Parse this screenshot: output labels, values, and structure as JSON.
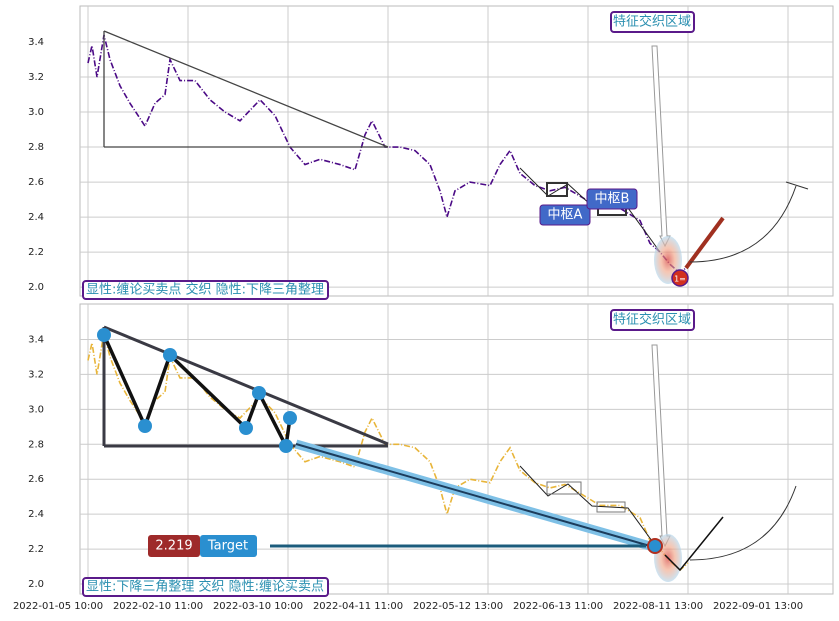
{
  "chart_data": [
    {
      "type": "line",
      "x": [
        0,
        4,
        9,
        16,
        22,
        32,
        42,
        57,
        67,
        77,
        82,
        92,
        107,
        122,
        137,
        152,
        172,
        187,
        202,
        217,
        232,
        252,
        267,
        277,
        284,
        297,
        312,
        327,
        342,
        352,
        359,
        367,
        382,
        402,
        412,
        422,
        432,
        447,
        462,
        477,
        492,
        512,
        532,
        552,
        562,
        572,
        582,
        592,
        600
      ],
      "series": [
        {
          "color": "#4b0a86",
          "values": [
            3.28,
            3.38,
            3.2,
            3.44,
            3.3,
            3.15,
            3.05,
            2.92,
            3.05,
            3.1,
            3.3,
            3.18,
            3.18,
            3.07,
            3.0,
            2.95,
            3.07,
            2.98,
            2.8,
            2.7,
            2.73,
            2.7,
            2.67,
            2.87,
            2.95,
            2.8,
            2.8,
            2.78,
            2.7,
            2.55,
            2.4,
            2.55,
            2.6,
            2.58,
            2.7,
            2.78,
            2.65,
            2.58,
            2.55,
            2.57,
            2.52,
            2.45,
            2.45,
            2.38,
            2.25,
            2.2,
            2.13,
            2.08,
            2.12
          ]
        }
      ],
      "xlim": [
        -8,
        745
      ],
      "ylim": [
        1.949,
        3.606
      ],
      "yticks": [
        {
          "value": 2,
          "label": "2.0"
        },
        2.2,
        2.4,
        2.6,
        2.8,
        {
          "value": 3,
          "label": "3.0"
        },
        3.2,
        3.4
      ],
      "grid": true,
      "annotations": [
        "特征交织区域",
        "中枢A",
        "中枢B",
        "1=",
        "显性:缠论买卖点 交织 隐性:下降三角整理"
      ]
    },
    {
      "type": "line",
      "x": [
        0,
        4,
        9,
        16,
        22,
        32,
        42,
        57,
        67,
        77,
        82,
        92,
        107,
        122,
        137,
        152,
        172,
        187,
        202,
        217,
        232,
        252,
        267,
        277,
        284,
        297,
        312,
        327,
        342,
        352,
        359,
        367,
        382,
        402,
        412,
        422,
        432,
        447,
        462,
        477,
        492,
        512,
        532,
        552,
        562,
        572,
        582,
        592,
        600
      ],
      "series": [
        {
          "color": "#e8b53a",
          "values": [
            3.28,
            3.38,
            3.2,
            3.44,
            3.3,
            3.15,
            3.05,
            2.92,
            3.05,
            3.1,
            3.3,
            3.18,
            3.18,
            3.07,
            3.0,
            2.95,
            3.07,
            2.98,
            2.8,
            2.7,
            2.73,
            2.7,
            2.67,
            2.87,
            2.95,
            2.8,
            2.8,
            2.78,
            2.7,
            2.55,
            2.4,
            2.55,
            2.6,
            2.58,
            2.7,
            2.78,
            2.65,
            2.58,
            2.55,
            2.57,
            2.52,
            2.45,
            2.45,
            2.38,
            2.25,
            2.2,
            2.13,
            2.08,
            2.12
          ]
        }
      ],
      "xlim": [
        -8,
        745
      ],
      "ylim": [
        1.943,
        3.603
      ],
      "xticks": [
        {
          "value": 0,
          "label": "2022-01-05 10:00"
        },
        {
          "value": 100,
          "label": "2022-02-10 11:00"
        },
        {
          "value": 200,
          "label": "2022-03-10 10:00"
        },
        {
          "value": 300,
          "label": "2022-04-11 11:00"
        },
        {
          "value": 400,
          "label": "2022-05-12 13:00"
        },
        {
          "value": 500,
          "label": "2022-06-13 11:00"
        },
        {
          "value": 600,
          "label": "2022-08-11 13:00"
        },
        {
          "value": 700,
          "label": "2022-09-01 13:00"
        }
      ],
      "yticks": [
        {
          "value": 2,
          "label": "2.0"
        },
        2.2,
        2.4,
        2.6,
        2.8,
        {
          "value": 3,
          "label": "3.0"
        },
        3.2,
        3.4
      ],
      "grid": true,
      "annotations": [
        "特征交织区域",
        "2.219",
        "Target",
        "显性:下降三角整理 交织 隐性:缠论买卖点"
      ]
    }
  ]
}
